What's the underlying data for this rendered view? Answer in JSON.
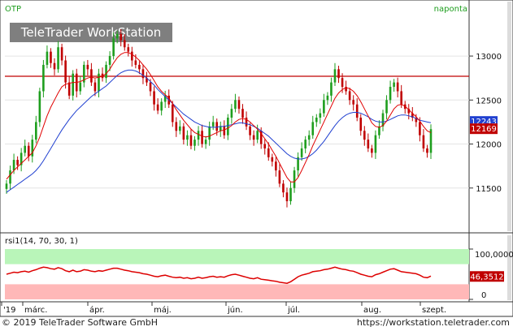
{
  "app": {
    "symbol": "OTP",
    "interval": "naponta",
    "watermark": "TeleTrader WorkStation",
    "copyright": "© 2019 TeleTrader Software GmbH",
    "website": "https://workstation.teletrader.com"
  },
  "colors": {
    "up_candle": "#1e9e1e",
    "down_candle": "#c00000",
    "ma_short": "#e00000",
    "ma_long": "#2040d0",
    "resistance": "#c00000",
    "rsi_line": "#dd0000",
    "rsi_high_zone": "#b9f5b9",
    "rsi_low_zone": "#ffb8b8",
    "axis_accent": "#c00000"
  },
  "chart_data": [
    {
      "type": "candlestick",
      "title": "OTP",
      "xlabel": "",
      "ylabel": "",
      "ylim": [
        11000,
        13600
      ],
      "y_ticks": [
        11500,
        12000,
        12500,
        13000
      ],
      "x_tick_labels": [
        "'19",
        "márc.",
        "ápr.",
        "máj.",
        "jún.",
        "júl.",
        "aug.",
        "szept."
      ],
      "resistance_level": 12770,
      "last_value_labels": {
        "close": "12169",
        "ma": "12243"
      },
      "closes": [
        11550,
        11700,
        11820,
        11760,
        11900,
        11980,
        11860,
        12050,
        12250,
        12600,
        12900,
        13050,
        12920,
        12850,
        13100,
        12950,
        12700,
        12550,
        12800,
        12600,
        12700,
        12900,
        12850,
        12700,
        12600,
        12800,
        12750,
        12900,
        13000,
        13200,
        13250,
        13180,
        13100,
        13050,
        12950,
        12900,
        12850,
        12750,
        12700,
        12600,
        12450,
        12380,
        12480,
        12550,
        12450,
        12250,
        12150,
        12200,
        12050,
        12100,
        11980,
        12050,
        12150,
        12000,
        12050,
        12200,
        12250,
        12150,
        12200,
        12100,
        12300,
        12400,
        12500,
        12400,
        12300,
        12200,
        12100,
        12050,
        12150,
        12000,
        11950,
        11850,
        11800,
        11700,
        11550,
        11450,
        11350,
        11500,
        11700,
        11850,
        11950,
        12050,
        12100,
        12250,
        12300,
        12350,
        12500,
        12550,
        12700,
        12850,
        12750,
        12650,
        12600,
        12500,
        12450,
        12300,
        12150,
        12050,
        11950,
        11900,
        12100,
        12200,
        12350,
        12500,
        12650,
        12700,
        12600,
        12450,
        12400,
        12350,
        12300,
        12250,
        12100,
        11950,
        11900,
        12169
      ],
      "ma_short": [
        11600,
        11650,
        11700,
        11740,
        11780,
        11820,
        11860,
        11900,
        11980,
        12080,
        12200,
        12320,
        12420,
        12500,
        12580,
        12650,
        12680,
        12690,
        12700,
        12700,
        12710,
        12730,
        12750,
        12760,
        12750,
        12760,
        12770,
        12800,
        12850,
        12920,
        12980,
        13020,
        13040,
        13040,
        13020,
        12990,
        12950,
        12900,
        12850,
        12790,
        12720,
        12650,
        12600,
        12560,
        12520,
        12460,
        12390,
        12330,
        12270,
        12220,
        12170,
        12130,
        12110,
        12090,
        12080,
        12090,
        12110,
        12130,
        12150,
        12160,
        12180,
        12210,
        12250,
        12280,
        12290,
        12280,
        12250,
        12210,
        12170,
        12120,
        12060,
        12000,
        11930,
        11860,
        11780,
        11700,
        11620,
        11570,
        11570,
        11620,
        11700,
        11790,
        11880,
        11980,
        12070,
        12160,
        12250,
        12340,
        12430,
        12520,
        12580,
        12620,
        12640,
        12630,
        12600,
        12550,
        12480,
        12400,
        12320,
        12240,
        12200,
        12190,
        12210,
        12260,
        12330,
        12400,
        12440,
        12450,
        12430,
        12390,
        12350,
        12310,
        12260,
        12200,
        12150,
        12130
      ],
      "ma_long": [
        11450,
        11480,
        11510,
        11540,
        11570,
        11600,
        11630,
        11660,
        11700,
        11750,
        11810,
        11880,
        11950,
        12020,
        12090,
        12160,
        12220,
        12280,
        12330,
        12380,
        12420,
        12460,
        12500,
        12540,
        12570,
        12600,
        12630,
        12660,
        12700,
        12740,
        12780,
        12810,
        12830,
        12840,
        12840,
        12830,
        12810,
        12780,
        12750,
        12710,
        12670,
        12620,
        12580,
        12540,
        12500,
        12460,
        12420,
        12380,
        12340,
        12310,
        12280,
        12250,
        12230,
        12210,
        12200,
        12190,
        12190,
        12190,
        12200,
        12200,
        12210,
        12220,
        12230,
        12240,
        12240,
        12230,
        12220,
        12200,
        12180,
        12150,
        12120,
        12090,
        12050,
        12010,
        11970,
        11930,
        11890,
        11860,
        11840,
        11830,
        11830,
        11840,
        11860,
        11890,
        11930,
        11980,
        12030,
        12090,
        12150,
        12210,
        12260,
        12300,
        12330,
        12350,
        12360,
        12360,
        12350,
        12330,
        12310,
        12280,
        12260,
        12250,
        12250,
        12260,
        12280,
        12300,
        12320,
        12330,
        12330,
        12320,
        12310,
        12290,
        12270,
        12260,
        12250,
        12243
      ]
    },
    {
      "type": "line",
      "title": "rsi1(14, 70, 30, 1)",
      "xlabel": "",
      "ylabel": "",
      "ylim": [
        0,
        100
      ],
      "y_ticks": [
        0,
        100
      ],
      "y_tick_labels": [
        "0",
        "100,0000"
      ],
      "zones": {
        "overbought": 70,
        "oversold": 30
      },
      "last_value_label": "46,3512",
      "values": [
        50,
        52,
        54,
        53,
        55,
        56,
        54,
        57,
        59,
        62,
        64,
        63,
        61,
        60,
        63,
        61,
        57,
        55,
        58,
        55,
        56,
        59,
        58,
        56,
        55,
        57,
        56,
        58,
        60,
        62,
        62,
        60,
        58,
        57,
        55,
        54,
        53,
        51,
        50,
        48,
        46,
        45,
        47,
        48,
        46,
        44,
        43,
        44,
        42,
        43,
        41,
        42,
        44,
        42,
        43,
        45,
        46,
        44,
        45,
        44,
        47,
        49,
        50,
        48,
        46,
        44,
        42,
        41,
        43,
        40,
        39,
        38,
        37,
        36,
        34,
        33,
        32,
        35,
        40,
        45,
        48,
        50,
        52,
        55,
        56,
        57,
        59,
        60,
        62,
        64,
        62,
        60,
        59,
        57,
        56,
        53,
        50,
        48,
        46,
        45,
        49,
        51,
        54,
        57,
        60,
        61,
        58,
        55,
        54,
        53,
        52,
        51,
        48,
        44,
        43,
        46.35
      ]
    }
  ]
}
